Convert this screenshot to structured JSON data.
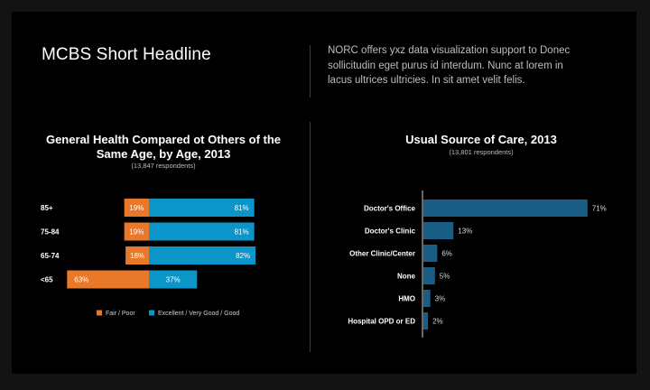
{
  "headline": "MCBS Short Headline",
  "intro": "NORC offers yxz data visualization support to Donec sollicitudin eget purus id interdum. Nunc at lorem in lacus ultrices ultricies. In sit amet velit felis.",
  "colors": {
    "orange": "#e8782a",
    "blue": "#0b95c8",
    "navy": "#1a5e86"
  },
  "chart_data": [
    {
      "type": "bar",
      "orientation": "horizontal-diverging",
      "title": "General Health Compared ot Others of the Same Age, by Age, 2013",
      "subtitle": "(13,847 respondents)",
      "categories": [
        "85+",
        "75-84",
        "65-74",
        "<65"
      ],
      "series": [
        {
          "name": "Fair / Poor",
          "color": "#e8782a",
          "values": [
            19,
            19,
            18,
            63
          ]
        },
        {
          "name": "Excellent / Very Good / Good",
          "color": "#0b95c8",
          "values": [
            81,
            81,
            82,
            37
          ]
        }
      ],
      "unit": "%",
      "legend": "bottom"
    },
    {
      "type": "bar",
      "orientation": "horizontal",
      "title": "Usual Source of Care, 2013",
      "subtitle": "(13,801 respondents)",
      "categories": [
        "Doctor's Office",
        "Doctor's Clinic",
        "Other Clinic/Center",
        "None",
        "HMO",
        "Hospital OPD or ED"
      ],
      "values": [
        71,
        13,
        6,
        5,
        3,
        2
      ],
      "unit": "%",
      "color": "#1a5e86"
    }
  ]
}
